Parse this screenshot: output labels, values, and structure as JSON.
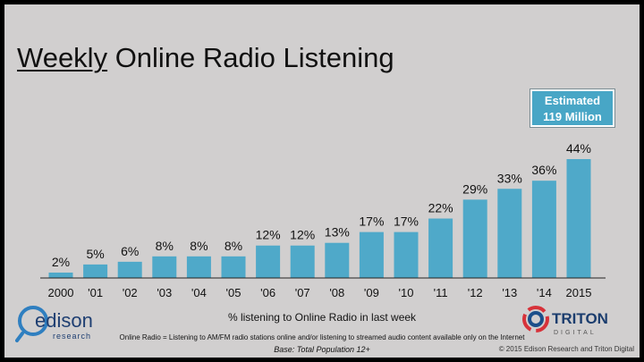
{
  "title": {
    "underlined": "Weekly",
    "rest": " Online Radio Listening"
  },
  "callout": {
    "line1": "Estimated",
    "line2": "119 Million"
  },
  "chart_data": {
    "type": "bar",
    "categories": [
      "2000",
      "'01",
      "'02",
      "'03",
      "'04",
      "'05",
      "'06",
      "'07",
      "'08",
      "'09",
      "'10",
      "'11",
      "'12",
      "'13",
      "'14",
      "2015"
    ],
    "values": [
      2,
      5,
      6,
      8,
      8,
      8,
      12,
      12,
      13,
      17,
      17,
      22,
      29,
      33,
      36,
      44
    ],
    "data_labels": [
      "2%",
      "5%",
      "6%",
      "8%",
      "8%",
      "8%",
      "12%",
      "12%",
      "13%",
      "17%",
      "17%",
      "22%",
      "29%",
      "33%",
      "36%",
      "44%"
    ],
    "xlabel": "% listening to Online Radio in last week",
    "ylim": [
      0,
      44
    ],
    "bar_color": "#4fa9c9"
  },
  "footnote": "Online Radio = Listening to AM/FM radio stations online and/or listening to streamed audio content available only on the Internet",
  "base": "Base: Total Population 12+",
  "copyright": "© 2015 Edison Research and Triton Digital",
  "logos": {
    "edison_name": "edison",
    "edison_sub": "research",
    "triton_name": "TRITON",
    "triton_sub": "DIGITAL"
  }
}
